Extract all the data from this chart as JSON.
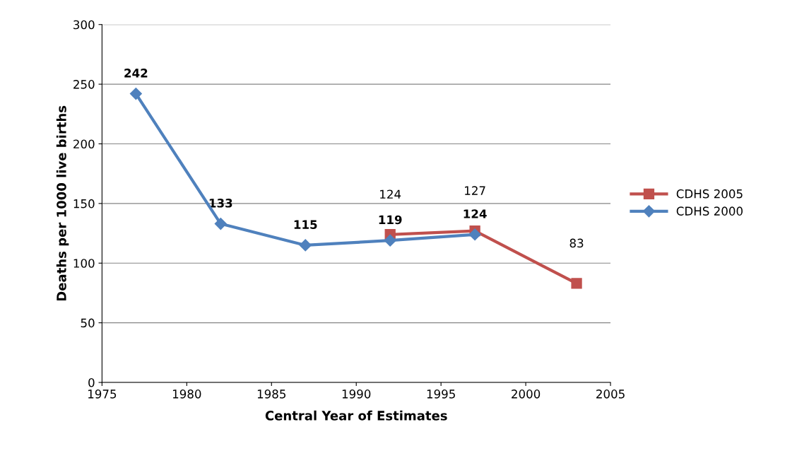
{
  "chart_data": {
    "type": "line",
    "xlabel": "Central Year of Estimates",
    "ylabel": "Deaths per 1000 live births",
    "series": [
      {
        "name": "CDHS 2005",
        "color": "#c0504d",
        "marker": "square",
        "x": [
          1992,
          1997,
          2003
        ],
        "values": [
          124,
          127,
          83
        ]
      },
      {
        "name": "CDHS 2000",
        "color": "#4f81bd",
        "marker": "diamond",
        "x": [
          1977,
          1982,
          1987,
          1992,
          1997
        ],
        "values": [
          242,
          133,
          115,
          119,
          124
        ]
      }
    ],
    "xlim": [
      1975,
      2005
    ],
    "xticks": [
      1975,
      1980,
      1985,
      1990,
      1995,
      2000,
      2005
    ],
    "ylim": [
      0,
      300
    ],
    "yticks": [
      0,
      50,
      100,
      150,
      200,
      250,
      300
    ],
    "grid": "y",
    "legend": "right",
    "data_labels": true,
    "line_style": "solid"
  }
}
